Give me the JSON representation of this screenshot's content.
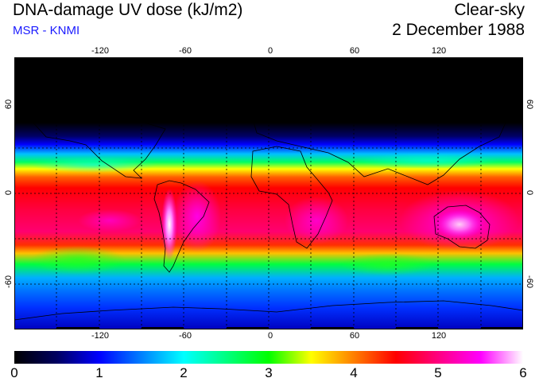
{
  "title": "DNA-damage UV dose (kJ/m2)",
  "subtitle": "MSR - KNMI",
  "condition": "Clear-sky",
  "date": "2 December 1988",
  "map": {
    "longitude_ticks": [
      "-120",
      "-60",
      "0",
      "60",
      "120"
    ],
    "latitude_ticks": [
      "60",
      "0",
      "-60"
    ],
    "gridlines": "dotted 30-degree",
    "projection": "equirectangular",
    "field_description": "UV dose peaks near the southern tropics (~20S), highest over Australia and the Andes; near-zero in the dark northern high latitudes"
  },
  "colorbar": {
    "min": 0,
    "max": 6,
    "labels": [
      "0",
      "1",
      "2",
      "3",
      "4",
      "5",
      "6"
    ],
    "colors": [
      "#000000",
      "#000060",
      "#0000ff",
      "#0080ff",
      "#00ffff",
      "#00ff80",
      "#00ff00",
      "#ffff00",
      "#ff8000",
      "#ff0000",
      "#ff0080",
      "#ff00ff",
      "#ffffff"
    ]
  }
}
